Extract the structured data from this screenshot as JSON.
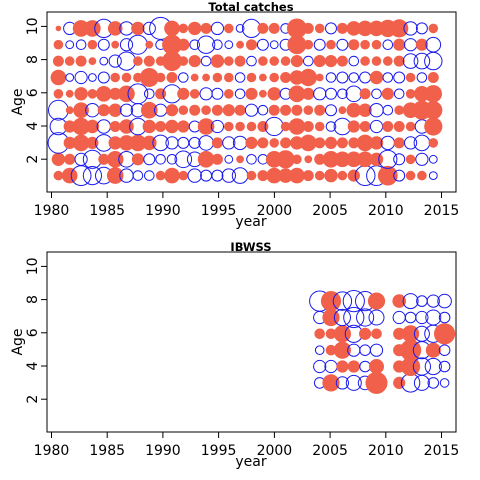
{
  "chart_data": [
    {
      "type": "scatter",
      "title": "Total catches",
      "xlabel": "year",
      "ylabel": "Age",
      "xlim": [
        1980,
        2016
      ],
      "ylim": [
        0,
        11
      ],
      "xticks": [
        "1980",
        "1985",
        "1990",
        "1995",
        "2000",
        "2005",
        "2010",
        "2015"
      ],
      "yticks": [
        "2",
        "4",
        "6",
        "8",
        "10"
      ],
      "grid": false,
      "legend": "none",
      "colors": {
        "positive": "#f0604a",
        "negative": "#1a1aee"
      },
      "ages": [
        1,
        2,
        3,
        4,
        5,
        6,
        7,
        8,
        9,
        10
      ],
      "years": [
        1981,
        1982,
        1983,
        1984,
        1985,
        1986,
        1987,
        1988,
        1989,
        1990,
        1991,
        1992,
        1993,
        1994,
        1995,
        1996,
        1997,
        1998,
        1999,
        2000,
        2001,
        2002,
        2003,
        2004,
        2005,
        2006,
        2007,
        2008,
        2009,
        2010,
        2011,
        2012,
        2013,
        2014
      ],
      "residuals": [
        [
          0.3,
          0.6,
          -1.4,
          -0.9,
          -1.3,
          0.3,
          0.8,
          0.4,
          0.3,
          0.1
        ],
        [
          0.8,
          0.4,
          0.5,
          0.5,
          0.2,
          0.2,
          -0.2,
          0.3,
          -0.2,
          -0.5
        ],
        [
          -1.3,
          -0.5,
          0.9,
          1.0,
          0.8,
          0.6,
          -0.5,
          0.4,
          -0.3,
          0.9
        ],
        [
          -1.1,
          -1.1,
          0.5,
          0.6,
          -0.6,
          0.3,
          -0.2,
          0.2,
          0.3,
          0.9
        ],
        [
          -0.9,
          0.4,
          -0.9,
          -0.6,
          0.5,
          0.8,
          -0.4,
          -0.2,
          -0.4,
          -1.1
        ],
        [
          0.9,
          0.9,
          0.6,
          0.4,
          0.6,
          0.5,
          0.3,
          -0.5,
          0.2,
          0.7
        ],
        [
          -0.6,
          -0.8,
          0.8,
          0.7,
          -0.5,
          0.9,
          0.3,
          -1.1,
          -0.5,
          -0.6
        ],
        [
          -0.3,
          0.5,
          0.9,
          -0.9,
          -0.6,
          -1.3,
          0.3,
          0.3,
          -1.2,
          0.6
        ],
        [
          -0.3,
          -0.4,
          0.7,
          0.6,
          0.9,
          -0.3,
          1.2,
          0.4,
          0.2,
          -0.5
        ],
        [
          0.3,
          -0.3,
          -0.8,
          0.4,
          -0.5,
          0.4,
          0.3,
          0.3,
          -0.3,
          -1.6
        ],
        [
          0.8,
          -0.3,
          -0.5,
          0.6,
          0.5,
          -1.1,
          0.4,
          1.3,
          1.3,
          0.8
        ],
        [
          0.3,
          -0.9,
          -0.4,
          0.5,
          0.3,
          0.5,
          -0.3,
          0.3,
          0.5,
          0.3
        ],
        [
          -0.6,
          -0.7,
          -0.4,
          -0.4,
          0.4,
          0.3,
          0.2,
          0.5,
          -0.3,
          0.6
        ],
        [
          -0.4,
          0.9,
          -0.7,
          0.9,
          0.3,
          -0.5,
          0.2,
          -0.3,
          -1.0,
          0.4
        ],
        [
          -0.4,
          0.4,
          0.4,
          -0.5,
          0.4,
          -0.4,
          0.3,
          0.6,
          -0.3,
          -0.5
        ],
        [
          -0.6,
          -0.2,
          -0.5,
          0.3,
          0.5,
          0.3,
          0.3,
          0.3,
          -0.2,
          0.3
        ],
        [
          -0.8,
          0.2,
          -0.6,
          0.3,
          0.4,
          -0.3,
          -0.3,
          0.4,
          0.2,
          -0.2
        ],
        [
          0.3,
          -0.3,
          0.5,
          0.3,
          -0.5,
          0.5,
          0.3,
          -0.3,
          0.4,
          -1.1
        ],
        [
          0.4,
          -0.3,
          0.4,
          0.4,
          -0.3,
          0.2,
          0.2,
          0.3,
          -0.4,
          0.4
        ],
        [
          0.8,
          0.9,
          0.3,
          -1.1,
          0.4,
          0.6,
          0.3,
          0.3,
          -0.2,
          0.4
        ],
        [
          0.7,
          1.1,
          0.4,
          0.3,
          0.4,
          -0.4,
          0.4,
          0.3,
          -0.4,
          -0.3
        ],
        [
          0.8,
          0.3,
          0.6,
          0.9,
          0.4,
          0.9,
          0.7,
          0.5,
          1.2,
          1.3
        ],
        [
          0.4,
          0.2,
          0.9,
          0.4,
          0.3,
          0.5,
          1.0,
          -0.3,
          0.3,
          0.4
        ],
        [
          0.3,
          0.4,
          0.4,
          0.3,
          0.4,
          -0.5,
          0.2,
          0.5,
          -0.4,
          0.3
        ],
        [
          0.6,
          0.9,
          0.5,
          -0.3,
          -0.4,
          -0.4,
          -0.3,
          0.5,
          0.3,
          -0.4
        ],
        [
          0.3,
          0.8,
          0.4,
          -0.9,
          0.2,
          -0.3,
          -0.4,
          0.4,
          -0.4,
          0.4
        ],
        [
          0.5,
          0.8,
          0.4,
          0.5,
          0.7,
          -0.8,
          -0.3,
          -0.3,
          0.4,
          0.7
        ],
        [
          -1.3,
          0.8,
          0.9,
          0.4,
          0.6,
          0.4,
          -0.4,
          0.3,
          0.3,
          0.8
        ],
        [
          -1.3,
          0.6,
          0.6,
          -0.5,
          -0.6,
          -0.3,
          0.6,
          0.3,
          0.3,
          0.8
        ],
        [
          1.3,
          -1.1,
          -0.6,
          0.4,
          -0.3,
          0.5,
          -0.3,
          0.3,
          -0.3,
          1.0
        ],
        [
          -0.4,
          -0.4,
          0.4,
          0.4,
          0.3,
          -0.3,
          -0.4,
          0.4,
          0.5,
          1.1
        ],
        [
          0.3,
          0.3,
          -0.5,
          0.3,
          0.8,
          0.3,
          0.3,
          -0.7,
          -0.5,
          -0.6
        ],
        [
          0.3,
          -0.5,
          -0.8,
          -0.6,
          1.2,
          0.8,
          -0.3,
          -0.8,
          0.5,
          -0.4
        ],
        [
          -0.2,
          -0.2,
          0.3,
          1.1,
          1.1,
          1.0,
          0.4,
          -1.0,
          -0.7,
          0.3
        ]
      ]
    },
    {
      "type": "scatter",
      "title": "IBWSS",
      "xlabel": "year",
      "ylabel": "Age",
      "xlim": [
        1980,
        2016
      ],
      "ylim": [
        0,
        11
      ],
      "xticks": [
        "1980",
        "1985",
        "1990",
        "1995",
        "2000",
        "2005",
        "2010",
        "2015"
      ],
      "yticks": [
        "2",
        "4",
        "6",
        "8",
        "10"
      ],
      "grid": false,
      "legend": "none",
      "colors": {
        "positive": "#f0604a",
        "negative": "#1a1aee"
      },
      "ages": [
        3,
        4,
        5,
        6,
        7,
        8
      ],
      "years": [
        2004,
        2005,
        2006,
        2007,
        2008,
        2009,
        2011,
        2012,
        2013,
        2014,
        2015
      ],
      "residuals": [
        [
          -0.3,
          -0.4,
          -0.2,
          0.3,
          -0.4,
          -1.1
        ],
        [
          0.8,
          -0.4,
          0.3,
          0.3,
          0.8,
          1.1
        ],
        [
          -0.4,
          0.4,
          0.8,
          0.8,
          -0.7,
          -0.9
        ],
        [
          -0.6,
          0.4,
          -0.4,
          -0.8,
          -1.1,
          -1.2
        ],
        [
          -0.5,
          -0.3,
          -0.3,
          0.4,
          -0.8,
          -1.0
        ],
        [
          1.3,
          0.6,
          -0.4,
          0.3,
          -0.6,
          0.8
        ],
        [
          0.4,
          0.4,
          0.4,
          0.4,
          -0.4,
          0.5
        ],
        [
          -0.9,
          1.0,
          1.2,
          0.8,
          -0.3,
          -0.6
        ],
        [
          -0.6,
          -0.8,
          -0.8,
          -0.6,
          -0.4,
          -0.3
        ],
        [
          -0.3,
          -0.7,
          0.6,
          -0.8,
          -0.6,
          -0.4
        ],
        [
          -0.2,
          -0.3,
          -0.3,
          1.2,
          -0.3,
          -0.5
        ]
      ]
    }
  ]
}
